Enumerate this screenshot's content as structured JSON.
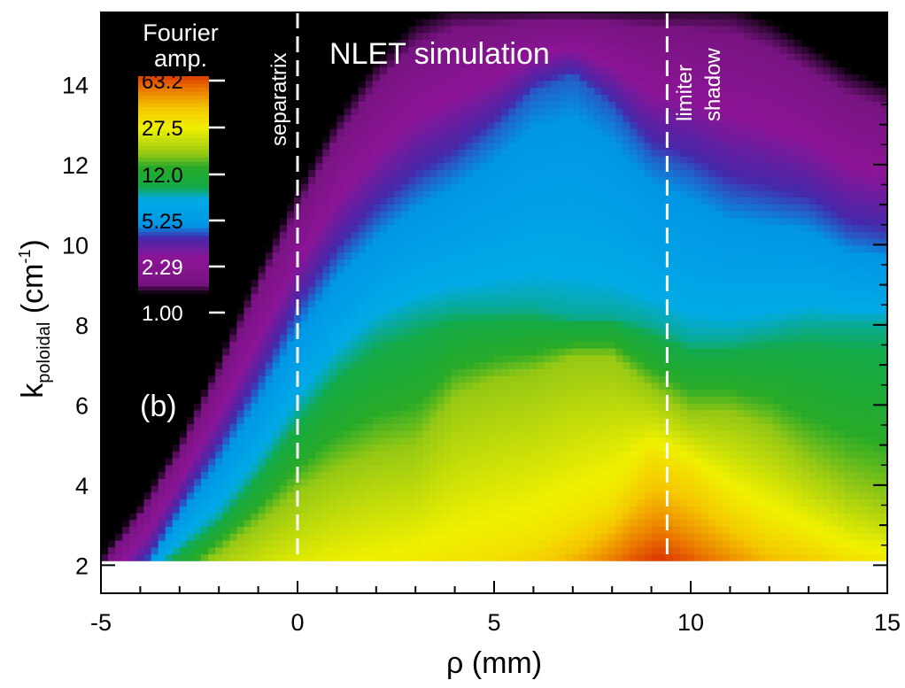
{
  "chart_data": {
    "type": "heatmap",
    "panel_label": "(b)",
    "title": "NLET simulation",
    "xlabel": "ρ (mm)",
    "ylabel": {
      "main": "k",
      "subscript": "poloidal",
      "unit_open": " (cm",
      "unit_sup": "-1",
      "unit_close": ")"
    },
    "xlim": [
      -5,
      15
    ],
    "ylim": [
      1.3,
      15.8
    ],
    "data_region_ymin": 2.1,
    "x_ticks": [
      -5,
      0,
      5,
      10,
      15
    ],
    "x_tick_labels": [
      "-5",
      "0",
      "5",
      "10",
      "15"
    ],
    "y_ticks": [
      2,
      4,
      6,
      8,
      10,
      12,
      14
    ],
    "y_tick_labels": [
      "2",
      "4",
      "6",
      "8",
      "10",
      "12",
      "14"
    ],
    "colorbar": {
      "title_line1": "Fourier",
      "title_line2": "amp.",
      "scale": "log",
      "ticks": [
        "63.2",
        "27.5",
        "12.0",
        "5.25",
        "2.29",
        "1.00"
      ],
      "range": [
        1.0,
        63.2
      ]
    },
    "annotations": [
      {
        "text": "separatrix",
        "x": 0
      },
      {
        "text_line1": "limiter",
        "text_line2": "shadow",
        "x": 9.4
      }
    ],
    "vlines": [
      0,
      9.4
    ],
    "contour_levels_log10": [
      {
        "level": 0.15,
        "ridge": [
          [
            -5,
            2.1
          ],
          [
            -4,
            3.4
          ],
          [
            -3,
            5.0
          ],
          [
            -2,
            7.0
          ],
          [
            -1,
            9.2
          ],
          [
            0,
            11.2
          ],
          [
            1,
            13.0
          ],
          [
            2,
            14.4
          ],
          [
            3,
            15.4
          ],
          [
            4,
            15.8
          ],
          [
            11,
            15.8
          ],
          [
            12,
            15.4
          ],
          [
            13,
            14.8
          ],
          [
            14,
            14.2
          ],
          [
            15,
            13.8
          ]
        ]
      },
      {
        "level": 0.6,
        "ridge": [
          [
            -5,
            1.0
          ],
          [
            -3.8,
            2.1
          ],
          [
            -3,
            3.4
          ],
          [
            -2,
            4.8
          ],
          [
            -1,
            6.4
          ],
          [
            0,
            8.2
          ],
          [
            1,
            9.6
          ],
          [
            2,
            10.6
          ],
          [
            3,
            11.4
          ],
          [
            4,
            12.0
          ],
          [
            5,
            12.8
          ],
          [
            6,
            13.8
          ],
          [
            7,
            14.2
          ],
          [
            8,
            13.4
          ],
          [
            9,
            12.2
          ],
          [
            10,
            11.8
          ],
          [
            11,
            11.2
          ],
          [
            12,
            11.0
          ],
          [
            13,
            10.8
          ],
          [
            14,
            10.2
          ],
          [
            15,
            10.0
          ]
        ]
      },
      {
        "level": 0.9,
        "ridge": [
          [
            -5,
            0.5
          ],
          [
            -3.4,
            2.1
          ],
          [
            -2,
            3.2
          ],
          [
            -1,
            4.4
          ],
          [
            0,
            5.8
          ],
          [
            1,
            7.0
          ],
          [
            2,
            7.8
          ],
          [
            3,
            8.2
          ],
          [
            4,
            8.4
          ],
          [
            5,
            8.4
          ],
          [
            6,
            8.4
          ],
          [
            7,
            8.2
          ],
          [
            8,
            8.2
          ],
          [
            9,
            8.0
          ],
          [
            10,
            7.6
          ],
          [
            11,
            7.6
          ],
          [
            12,
            7.8
          ],
          [
            13,
            8.0
          ],
          [
            14,
            8.0
          ],
          [
            15,
            8.0
          ]
        ]
      },
      {
        "level": 1.2,
        "ridge": [
          [
            -5,
            0.2
          ],
          [
            -3,
            1.6
          ],
          [
            -2,
            2.3
          ],
          [
            -1,
            3.0
          ],
          [
            0,
            3.8
          ],
          [
            1,
            4.4
          ],
          [
            2,
            4.8
          ],
          [
            3,
            5.0
          ],
          [
            3.5,
            5.6
          ],
          [
            4,
            6.2
          ],
          [
            5,
            6.6
          ],
          [
            6,
            6.8
          ],
          [
            7,
            7.2
          ],
          [
            8,
            7.2
          ],
          [
            9,
            6.4
          ],
          [
            10,
            5.8
          ],
          [
            11,
            5.8
          ],
          [
            12,
            5.4
          ],
          [
            13,
            4.6
          ],
          [
            14,
            4.0
          ],
          [
            15,
            3.6
          ]
        ]
      },
      {
        "level": 1.45,
        "ridge": [
          [
            -5,
            0
          ],
          [
            0,
            1.2
          ],
          [
            2,
            1.6
          ],
          [
            4,
            2.0
          ],
          [
            6,
            2.6
          ],
          [
            8,
            3.6
          ],
          [
            9,
            4.8
          ],
          [
            10,
            4.4
          ],
          [
            11,
            3.6
          ],
          [
            12,
            3.0
          ],
          [
            13,
            2.6
          ],
          [
            14,
            2.2
          ],
          [
            15,
            2.0
          ]
        ]
      },
      {
        "level": 1.65,
        "ridge": [
          [
            -5,
            -1
          ],
          [
            6,
            1.0
          ],
          [
            7.5,
            2.0
          ],
          [
            8.5,
            2.8
          ],
          [
            9.2,
            3.2
          ],
          [
            10,
            2.8
          ],
          [
            11,
            2.2
          ],
          [
            12,
            1.6
          ],
          [
            15,
            1.0
          ]
        ]
      }
    ]
  }
}
